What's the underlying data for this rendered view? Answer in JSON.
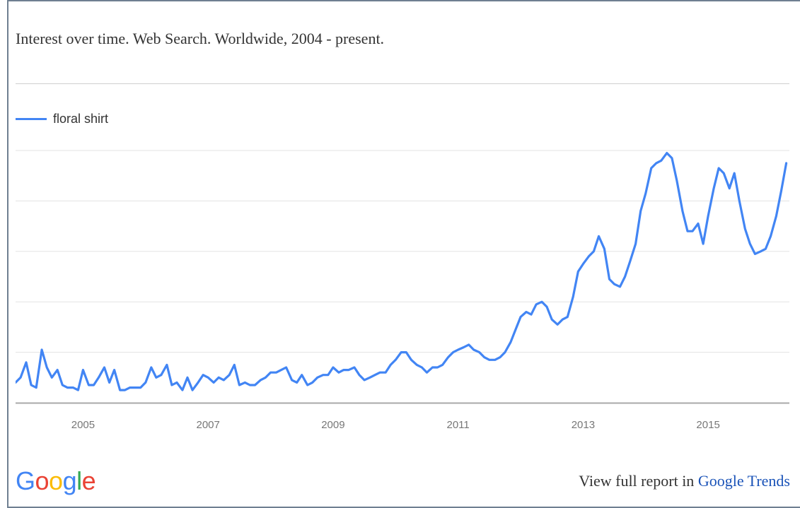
{
  "title": "Interest over time. Web Search. Worldwide, 2004 - present.",
  "colors": {
    "series": "#4285f4",
    "grid": "#e3e3e3",
    "axis": "#a9a9a9",
    "tick_label": "#777777",
    "link": "#1a53b8",
    "logo": [
      "#4285f4",
      "#ea4335",
      "#fbbc05",
      "#4285f4",
      "#34a853",
      "#ea4335"
    ]
  },
  "footer": {
    "logo_letters": [
      "G",
      "o",
      "o",
      "g",
      "l",
      "e"
    ],
    "link_prefix": "View full report in ",
    "link_text": "Google Trends"
  },
  "chart_data": {
    "type": "line",
    "title": "Interest over time. Web Search. Worldwide, 2004 - present.",
    "xlabel": "",
    "ylabel": "",
    "xlim": [
      2004.0,
      2016.38
    ],
    "ylim": [
      0,
      100
    ],
    "grid": true,
    "legend_position": "top-left",
    "xticks": [
      "2005",
      "2007",
      "2009",
      "2011",
      "2013",
      "2015"
    ],
    "series": [
      {
        "name": "floral shirt",
        "points": [
          [
            2004.0,
            8
          ],
          [
            2004.08,
            10
          ],
          [
            2004.17,
            16
          ],
          [
            2004.25,
            7
          ],
          [
            2004.33,
            6
          ],
          [
            2004.42,
            21
          ],
          [
            2004.5,
            14
          ],
          [
            2004.58,
            10
          ],
          [
            2004.67,
            13
          ],
          [
            2004.75,
            7
          ],
          [
            2004.83,
            6
          ],
          [
            2004.92,
            6
          ],
          [
            2005.0,
            5
          ],
          [
            2005.08,
            13
          ],
          [
            2005.17,
            7
          ],
          [
            2005.25,
            7
          ],
          [
            2005.33,
            10
          ],
          [
            2005.42,
            14
          ],
          [
            2005.5,
            8
          ],
          [
            2005.58,
            13
          ],
          [
            2005.67,
            5
          ],
          [
            2005.75,
            5
          ],
          [
            2005.83,
            6
          ],
          [
            2005.92,
            6
          ],
          [
            2006.0,
            6
          ],
          [
            2006.08,
            8
          ],
          [
            2006.17,
            14
          ],
          [
            2006.25,
            10
          ],
          [
            2006.33,
            11
          ],
          [
            2006.42,
            15
          ],
          [
            2006.5,
            7
          ],
          [
            2006.58,
            8
          ],
          [
            2006.67,
            5
          ],
          [
            2006.75,
            10
          ],
          [
            2006.83,
            5
          ],
          [
            2006.92,
            8
          ],
          [
            2007.0,
            11
          ],
          [
            2007.08,
            10
          ],
          [
            2007.17,
            8
          ],
          [
            2007.25,
            10
          ],
          [
            2007.33,
            9
          ],
          [
            2007.42,
            11
          ],
          [
            2007.5,
            15
          ],
          [
            2007.58,
            7
          ],
          [
            2007.67,
            8
          ],
          [
            2007.75,
            7
          ],
          [
            2007.83,
            7
          ],
          [
            2007.92,
            9
          ],
          [
            2008.0,
            10
          ],
          [
            2008.08,
            12
          ],
          [
            2008.17,
            12
          ],
          [
            2008.25,
            13
          ],
          [
            2008.33,
            14
          ],
          [
            2008.42,
            9
          ],
          [
            2008.5,
            8
          ],
          [
            2008.58,
            11
          ],
          [
            2008.67,
            7
          ],
          [
            2008.75,
            8
          ],
          [
            2008.83,
            10
          ],
          [
            2008.92,
            11
          ],
          [
            2009.0,
            11
          ],
          [
            2009.08,
            14
          ],
          [
            2009.17,
            12
          ],
          [
            2009.25,
            13
          ],
          [
            2009.33,
            13
          ],
          [
            2009.42,
            14
          ],
          [
            2009.5,
            11
          ],
          [
            2009.58,
            9
          ],
          [
            2009.67,
            10
          ],
          [
            2009.75,
            11
          ],
          [
            2009.83,
            12
          ],
          [
            2009.92,
            12
          ],
          [
            2010.0,
            15
          ],
          [
            2010.08,
            17
          ],
          [
            2010.17,
            20
          ],
          [
            2010.25,
            20
          ],
          [
            2010.33,
            17
          ],
          [
            2010.42,
            15
          ],
          [
            2010.5,
            14
          ],
          [
            2010.58,
            12
          ],
          [
            2010.67,
            14
          ],
          [
            2010.75,
            14
          ],
          [
            2010.83,
            15
          ],
          [
            2010.92,
            18
          ],
          [
            2011.0,
            20
          ],
          [
            2011.08,
            21
          ],
          [
            2011.17,
            22
          ],
          [
            2011.25,
            23
          ],
          [
            2011.33,
            21
          ],
          [
            2011.42,
            20
          ],
          [
            2011.5,
            18
          ],
          [
            2011.58,
            17
          ],
          [
            2011.67,
            17
          ],
          [
            2011.75,
            18
          ],
          [
            2011.83,
            20
          ],
          [
            2011.92,
            24
          ],
          [
            2012.0,
            29
          ],
          [
            2012.08,
            34
          ],
          [
            2012.17,
            36
          ],
          [
            2012.25,
            35
          ],
          [
            2012.33,
            39
          ],
          [
            2012.42,
            40
          ],
          [
            2012.5,
            38
          ],
          [
            2012.58,
            33
          ],
          [
            2012.67,
            31
          ],
          [
            2012.75,
            33
          ],
          [
            2012.83,
            34
          ],
          [
            2012.92,
            42
          ],
          [
            2013.0,
            52
          ],
          [
            2013.08,
            55
          ],
          [
            2013.17,
            58
          ],
          [
            2013.25,
            60
          ],
          [
            2013.33,
            66
          ],
          [
            2013.42,
            61
          ],
          [
            2013.5,
            49
          ],
          [
            2013.58,
            47
          ],
          [
            2013.67,
            46
          ],
          [
            2013.75,
            50
          ],
          [
            2013.83,
            56
          ],
          [
            2013.92,
            63
          ],
          [
            2014.0,
            76
          ],
          [
            2014.08,
            83
          ],
          [
            2014.17,
            93
          ],
          [
            2014.25,
            95
          ],
          [
            2014.33,
            96
          ],
          [
            2014.42,
            99
          ],
          [
            2014.5,
            97
          ],
          [
            2014.58,
            88
          ],
          [
            2014.67,
            76
          ],
          [
            2014.75,
            68
          ],
          [
            2014.83,
            68
          ],
          [
            2014.92,
            71
          ],
          [
            2015.0,
            63
          ],
          [
            2015.08,
            74
          ],
          [
            2015.17,
            85
          ],
          [
            2015.25,
            93
          ],
          [
            2015.33,
            91
          ],
          [
            2015.42,
            85
          ],
          [
            2015.5,
            91
          ],
          [
            2015.58,
            80
          ],
          [
            2015.67,
            69
          ],
          [
            2015.75,
            63
          ],
          [
            2015.83,
            59
          ],
          [
            2015.92,
            60
          ],
          [
            2016.0,
            61
          ],
          [
            2016.08,
            66
          ],
          [
            2016.17,
            74
          ],
          [
            2016.25,
            84
          ],
          [
            2016.33,
            95
          ]
        ]
      }
    ]
  }
}
